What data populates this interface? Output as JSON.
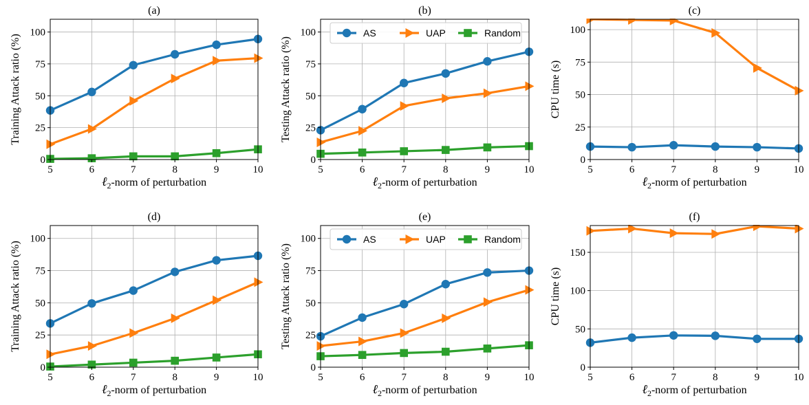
{
  "colors": {
    "AS": "#1f77b4",
    "UAP": "#ff7f0e",
    "Random": "#2ca02c"
  },
  "chart_data": [
    {
      "title": "(a)",
      "type": "line",
      "xlabel": "ℓ2-norm of perturbation",
      "ylabel": "Training Attack ratio (%)",
      "x": [
        5,
        6,
        7,
        8,
        9,
        10
      ],
      "xlim": [
        5,
        10
      ],
      "ylim": [
        0,
        110
      ],
      "yticks": [
        0,
        25,
        50,
        75,
        100
      ],
      "grid": true,
      "legend": null,
      "series": [
        {
          "name": "AS",
          "marker": "circle",
          "values": [
            38.5,
            53,
            74,
            82.5,
            90,
            94.5
          ]
        },
        {
          "name": "UAP",
          "marker": "triangle-right",
          "values": [
            12,
            24,
            46,
            63.5,
            77.5,
            79.5
          ]
        },
        {
          "name": "Random",
          "marker": "square",
          "values": [
            0.5,
            1,
            2.5,
            2.5,
            5,
            8
          ]
        }
      ]
    },
    {
      "title": "(b)",
      "type": "line",
      "xlabel": "ℓ2-norm of perturbation",
      "ylabel": "Testing Attack ratio (%)",
      "x": [
        5,
        6,
        7,
        8,
        9,
        10
      ],
      "xlim": [
        5,
        10
      ],
      "ylim": [
        0,
        110
      ],
      "yticks": [
        0,
        25,
        50,
        75,
        100
      ],
      "grid": true,
      "legend": "top",
      "series": [
        {
          "name": "AS",
          "marker": "circle",
          "values": [
            23,
            39.5,
            60,
            67.5,
            77,
            84.5
          ]
        },
        {
          "name": "UAP",
          "marker": "triangle-right",
          "values": [
            13.5,
            22.5,
            42,
            48,
            52,
            57.5
          ]
        },
        {
          "name": "Random",
          "marker": "square",
          "values": [
            4.5,
            5.5,
            6.5,
            7.5,
            9.5,
            10.5
          ]
        }
      ]
    },
    {
      "title": "(c)",
      "type": "line",
      "xlabel": "ℓ2-norm of perturbation",
      "ylabel": "CPU time (s)",
      "x": [
        5,
        6,
        7,
        8,
        9,
        10
      ],
      "xlim": [
        5,
        10
      ],
      "ylim": [
        0,
        108
      ],
      "yticks": [
        0,
        25,
        50,
        75,
        100
      ],
      "grid": true,
      "legend": null,
      "series": [
        {
          "name": "AS",
          "marker": "circle",
          "values": [
            10,
            9.5,
            11,
            10,
            9.5,
            8.5
          ]
        },
        {
          "name": "UAP",
          "marker": "triangle-right",
          "values": [
            108,
            107.5,
            107,
            97.5,
            70.5,
            53
          ]
        }
      ]
    },
    {
      "title": "(d)",
      "type": "line",
      "xlabel": "ℓ2-norm of perturbation",
      "ylabel": "Training Attack ratio (%)",
      "x": [
        5,
        6,
        7,
        8,
        9,
        10
      ],
      "xlim": [
        5,
        10
      ],
      "ylim": [
        0,
        110
      ],
      "yticks": [
        0,
        25,
        50,
        75,
        100
      ],
      "grid": true,
      "legend": null,
      "series": [
        {
          "name": "AS",
          "marker": "circle",
          "values": [
            34,
            49.5,
            59.5,
            74,
            83,
            86.5
          ]
        },
        {
          "name": "UAP",
          "marker": "triangle-right",
          "values": [
            10,
            16.5,
            26.5,
            38,
            52,
            66
          ]
        },
        {
          "name": "Random",
          "marker": "square",
          "values": [
            0.5,
            2,
            3.5,
            5,
            7.5,
            10
          ]
        }
      ]
    },
    {
      "title": "(e)",
      "type": "line",
      "xlabel": "ℓ2-norm of perturbation",
      "ylabel": "Testing Attack ratio (%)",
      "x": [
        5,
        6,
        7,
        8,
        9,
        10
      ],
      "xlim": [
        5,
        10
      ],
      "ylim": [
        0,
        110
      ],
      "yticks": [
        0,
        25,
        50,
        75,
        100
      ],
      "grid": true,
      "legend": "top",
      "series": [
        {
          "name": "AS",
          "marker": "circle",
          "values": [
            24,
            38.5,
            49,
            64.5,
            73.5,
            75
          ]
        },
        {
          "name": "UAP",
          "marker": "triangle-right",
          "values": [
            16.5,
            20,
            26.5,
            38,
            50.5,
            60
          ]
        },
        {
          "name": "Random",
          "marker": "square",
          "values": [
            8.5,
            9.5,
            11,
            12,
            14.5,
            17
          ]
        }
      ]
    },
    {
      "title": "(f)",
      "type": "line",
      "xlabel": "ℓ2-norm of perturbation",
      "ylabel": "CPU time (s)",
      "x": [
        5,
        6,
        7,
        8,
        9,
        10
      ],
      "xlim": [
        5,
        10
      ],
      "ylim": [
        0,
        185
      ],
      "yticks": [
        0,
        50,
        100,
        150
      ],
      "grid": true,
      "legend": null,
      "series": [
        {
          "name": "AS",
          "marker": "circle",
          "values": [
            32,
            38.5,
            41.5,
            41,
            37,
            37
          ]
        },
        {
          "name": "UAP",
          "marker": "triangle-right",
          "values": [
            178,
            181,
            175,
            174,
            184,
            181
          ]
        }
      ]
    }
  ]
}
